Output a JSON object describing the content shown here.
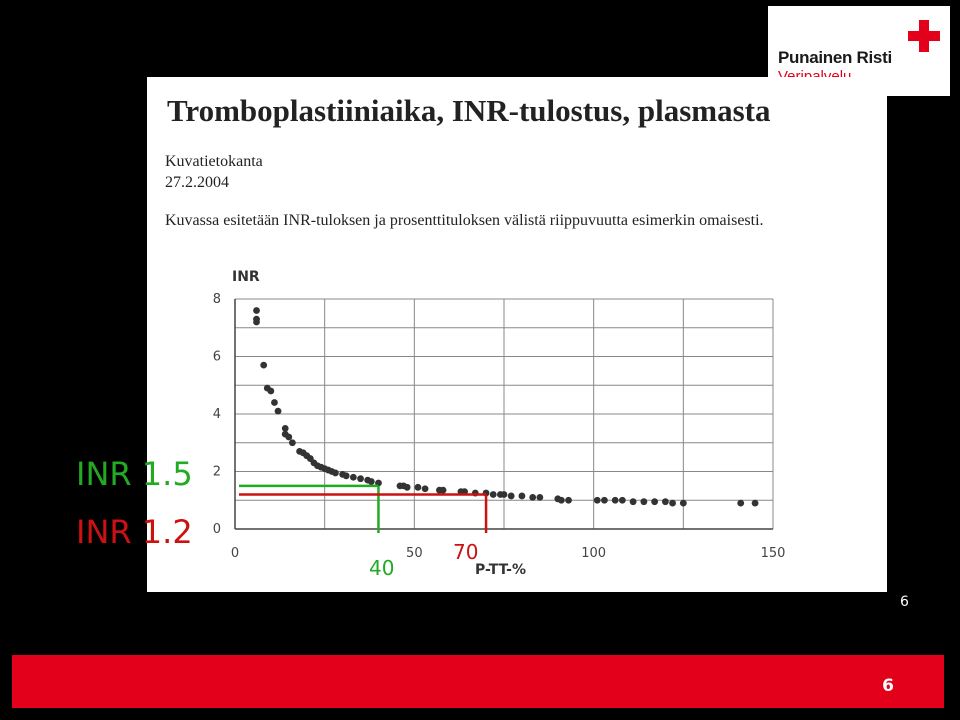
{
  "logo": {
    "org_name": "Punainen Risti",
    "sub_name": "Veripalvelu",
    "icon": "red-cross-icon",
    "color": "#e2001a"
  },
  "document": {
    "title": "Tromboplastiiniaika, INR-tulostus, plasmasta",
    "source": "Kuvatietokanta",
    "date": "27.2.2004",
    "description": "Kuvassa esitetään INR-tuloksen ja prosenttituloksen välistä riippuvuutta esimerkin omaisesti."
  },
  "annotations": {
    "inr_high": {
      "label": "INR 1.5",
      "color": "#22aa22",
      "inr": 1.5,
      "ptt": 40
    },
    "inr_low": {
      "label": "INR 1.2",
      "color": "#cc1111",
      "inr": 1.2,
      "ptt": 70
    },
    "ptt_high_label": "40",
    "ptt_low_label": "70"
  },
  "chart_data": {
    "type": "scatter",
    "xlabel": "P-TT-%",
    "ylabel": "INR",
    "xlim": [
      0,
      150
    ],
    "ylim": [
      0,
      8
    ],
    "xticks": [
      0,
      50,
      100,
      150
    ],
    "yticks": [
      0,
      2,
      4,
      6,
      8
    ],
    "grid": true,
    "points": [
      [
        6,
        7.6
      ],
      [
        6,
        7.3
      ],
      [
        6,
        7.2
      ],
      [
        8,
        5.7
      ],
      [
        9,
        4.9
      ],
      [
        10,
        4.8
      ],
      [
        11,
        4.4
      ],
      [
        12,
        4.1
      ],
      [
        14,
        3.5
      ],
      [
        14,
        3.3
      ],
      [
        15,
        3.2
      ],
      [
        16,
        3.0
      ],
      [
        18,
        2.7
      ],
      [
        19,
        2.65
      ],
      [
        20,
        2.55
      ],
      [
        21,
        2.45
      ],
      [
        22,
        2.3
      ],
      [
        23,
        2.2
      ],
      [
        24,
        2.15
      ],
      [
        25,
        2.1
      ],
      [
        26,
        2.05
      ],
      [
        27,
        2.0
      ],
      [
        28,
        1.95
      ],
      [
        30,
        1.9
      ],
      [
        31,
        1.85
      ],
      [
        33,
        1.8
      ],
      [
        35,
        1.75
      ],
      [
        37,
        1.7
      ],
      [
        38,
        1.65
      ],
      [
        40,
        1.6
      ],
      [
        46,
        1.5
      ],
      [
        47,
        1.5
      ],
      [
        48,
        1.45
      ],
      [
        51,
        1.45
      ],
      [
        53,
        1.4
      ],
      [
        57,
        1.35
      ],
      [
        58,
        1.35
      ],
      [
        63,
        1.3
      ],
      [
        64,
        1.3
      ],
      [
        67,
        1.25
      ],
      [
        70,
        1.25
      ],
      [
        72,
        1.2
      ],
      [
        74,
        1.2
      ],
      [
        75,
        1.2
      ],
      [
        77,
        1.15
      ],
      [
        80,
        1.15
      ],
      [
        83,
        1.1
      ],
      [
        85,
        1.1
      ],
      [
        90,
        1.05
      ],
      [
        91,
        1.0
      ],
      [
        93,
        1.0
      ],
      [
        101,
        1.0
      ],
      [
        103,
        1.0
      ],
      [
        106,
        1.0
      ],
      [
        108,
        1.0
      ],
      [
        111,
        0.95
      ],
      [
        114,
        0.95
      ],
      [
        117,
        0.95
      ],
      [
        120,
        0.95
      ],
      [
        122,
        0.9
      ],
      [
        125,
        0.9
      ],
      [
        141,
        0.9
      ],
      [
        145,
        0.9
      ]
    ]
  },
  "page": {
    "number_small": "6",
    "number_bar": "6",
    "bar_color": "#e2001a"
  }
}
